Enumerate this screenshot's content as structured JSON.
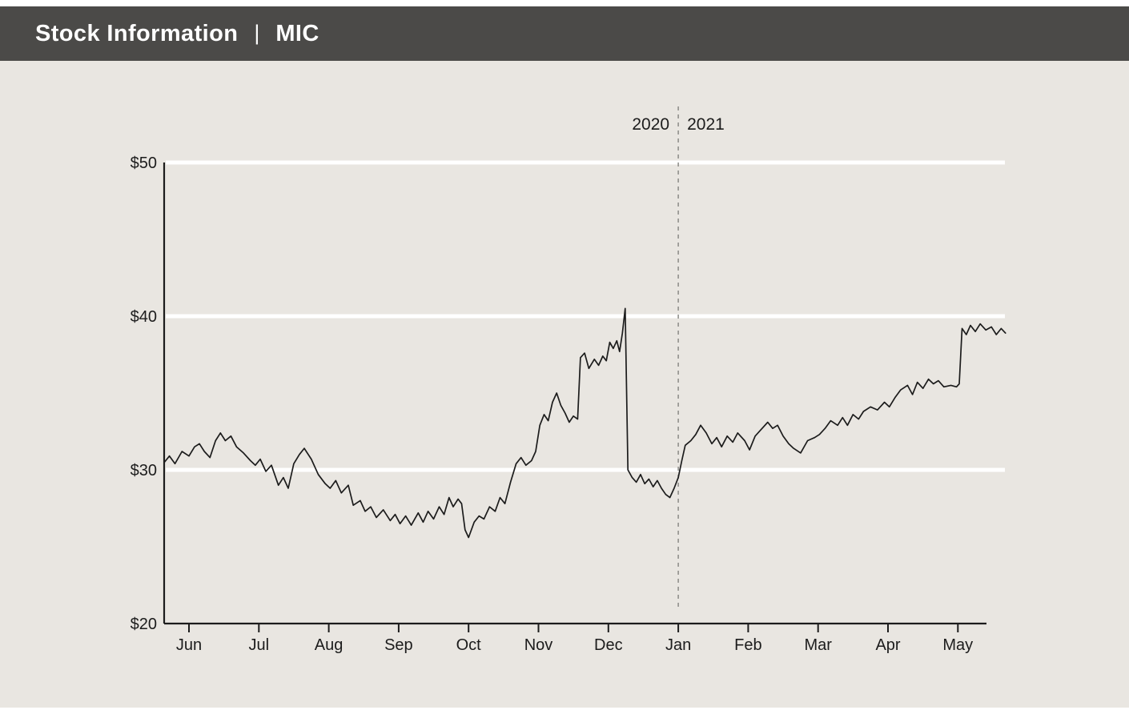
{
  "header": {
    "title": "Stock Information",
    "separator": "|",
    "ticker": "MIC"
  },
  "colors": {
    "header_bg": "#4b4a48",
    "header_text": "#ffffff",
    "chart_bg": "#e9e6e1",
    "line": "#1c1c1c",
    "axis": "#1c1c1c",
    "gridline": "#ffffff",
    "divider": "#8b8b86",
    "label_text": "#1c1c1c"
  },
  "chart_data": {
    "type": "line",
    "title": "Stock Information | MIC",
    "x_unit": "month index (0 = Jun 2020 tick, 11 = May 2021 tick, fractional = position within month)",
    "y_unit": "USD share price",
    "x_ticks": [
      "Jun",
      "Jul",
      "Aug",
      "Sep",
      "Oct",
      "Nov",
      "Dec",
      "Jan",
      "Feb",
      "Mar",
      "Apr",
      "May"
    ],
    "y_ticks": [
      {
        "value": 20,
        "label": "$20"
      },
      {
        "value": 30,
        "label": "$30"
      },
      {
        "value": 40,
        "label": "$40"
      },
      {
        "value": 50,
        "label": "$50"
      }
    ],
    "ylim": [
      20,
      50
    ],
    "gridline_values": [
      30,
      40,
      50
    ],
    "grid": "horizontal white lines at $30, $40, $50",
    "legend": "none",
    "year_divider": {
      "month_index": 7,
      "at_month": "Jan",
      "left_label": "2020",
      "right_label": "2021"
    },
    "series": [
      {
        "name": "MIC",
        "points": [
          [
            -0.35,
            30.5
          ],
          [
            -0.28,
            30.9
          ],
          [
            -0.2,
            30.4
          ],
          [
            -0.1,
            31.2
          ],
          [
            0,
            30.9
          ],
          [
            0.08,
            31.5
          ],
          [
            0.15,
            31.7
          ],
          [
            0.22,
            31.2
          ],
          [
            0.3,
            30.8
          ],
          [
            0.38,
            31.9
          ],
          [
            0.45,
            32.4
          ],
          [
            0.52,
            31.9
          ],
          [
            0.6,
            32.2
          ],
          [
            0.68,
            31.5
          ],
          [
            0.78,
            31.1
          ],
          [
            0.88,
            30.6
          ],
          [
            0.95,
            30.3
          ],
          [
            1.02,
            30.7
          ],
          [
            1.1,
            29.9
          ],
          [
            1.18,
            30.3
          ],
          [
            1.28,
            29.0
          ],
          [
            1.35,
            29.5
          ],
          [
            1.42,
            28.8
          ],
          [
            1.5,
            30.4
          ],
          [
            1.58,
            31.0
          ],
          [
            1.65,
            31.4
          ],
          [
            1.75,
            30.7
          ],
          [
            1.85,
            29.7
          ],
          [
            1.95,
            29.1
          ],
          [
            2.02,
            28.8
          ],
          [
            2.1,
            29.3
          ],
          [
            2.18,
            28.5
          ],
          [
            2.28,
            29.0
          ],
          [
            2.35,
            27.7
          ],
          [
            2.45,
            28.0
          ],
          [
            2.52,
            27.3
          ],
          [
            2.6,
            27.6
          ],
          [
            2.68,
            26.9
          ],
          [
            2.78,
            27.4
          ],
          [
            2.88,
            26.7
          ],
          [
            2.95,
            27.1
          ],
          [
            3.02,
            26.5
          ],
          [
            3.1,
            27.0
          ],
          [
            3.18,
            26.4
          ],
          [
            3.28,
            27.2
          ],
          [
            3.35,
            26.6
          ],
          [
            3.42,
            27.3
          ],
          [
            3.5,
            26.8
          ],
          [
            3.58,
            27.6
          ],
          [
            3.65,
            27.1
          ],
          [
            3.72,
            28.2
          ],
          [
            3.78,
            27.6
          ],
          [
            3.85,
            28.1
          ],
          [
            3.9,
            27.8
          ],
          [
            3.95,
            26.1
          ],
          [
            4.0,
            25.6
          ],
          [
            4.08,
            26.6
          ],
          [
            4.15,
            27.0
          ],
          [
            4.22,
            26.8
          ],
          [
            4.3,
            27.6
          ],
          [
            4.38,
            27.3
          ],
          [
            4.45,
            28.2
          ],
          [
            4.52,
            27.8
          ],
          [
            4.6,
            29.2
          ],
          [
            4.68,
            30.4
          ],
          [
            4.75,
            30.8
          ],
          [
            4.82,
            30.3
          ],
          [
            4.9,
            30.6
          ],
          [
            4.96,
            31.2
          ],
          [
            5.02,
            32.9
          ],
          [
            5.08,
            33.6
          ],
          [
            5.14,
            33.2
          ],
          [
            5.2,
            34.4
          ],
          [
            5.26,
            35.0
          ],
          [
            5.32,
            34.2
          ],
          [
            5.38,
            33.7
          ],
          [
            5.44,
            33.1
          ],
          [
            5.5,
            33.5
          ],
          [
            5.56,
            33.3
          ],
          [
            5.6,
            37.3
          ],
          [
            5.66,
            37.6
          ],
          [
            5.72,
            36.6
          ],
          [
            5.8,
            37.2
          ],
          [
            5.86,
            36.8
          ],
          [
            5.92,
            37.4
          ],
          [
            5.97,
            37.1
          ],
          [
            6.02,
            38.3
          ],
          [
            6.07,
            37.9
          ],
          [
            6.12,
            38.4
          ],
          [
            6.16,
            37.7
          ],
          [
            6.2,
            38.9
          ],
          [
            6.24,
            40.5
          ],
          [
            6.28,
            30.0
          ],
          [
            6.34,
            29.5
          ],
          [
            6.4,
            29.2
          ],
          [
            6.46,
            29.7
          ],
          [
            6.52,
            29.1
          ],
          [
            6.58,
            29.4
          ],
          [
            6.64,
            28.9
          ],
          [
            6.7,
            29.3
          ],
          [
            6.76,
            28.8
          ],
          [
            6.82,
            28.4
          ],
          [
            6.88,
            28.2
          ],
          [
            6.94,
            28.8
          ],
          [
            7.0,
            29.5
          ],
          [
            7.05,
            30.6
          ],
          [
            7.1,
            31.6
          ],
          [
            7.18,
            31.9
          ],
          [
            7.25,
            32.3
          ],
          [
            7.32,
            32.9
          ],
          [
            7.4,
            32.4
          ],
          [
            7.48,
            31.7
          ],
          [
            7.55,
            32.1
          ],
          [
            7.62,
            31.5
          ],
          [
            7.7,
            32.2
          ],
          [
            7.78,
            31.8
          ],
          [
            7.85,
            32.4
          ],
          [
            7.95,
            31.9
          ],
          [
            8.02,
            31.3
          ],
          [
            8.1,
            32.2
          ],
          [
            8.18,
            32.6
          ],
          [
            8.28,
            33.1
          ],
          [
            8.35,
            32.7
          ],
          [
            8.42,
            32.9
          ],
          [
            8.5,
            32.2
          ],
          [
            8.58,
            31.7
          ],
          [
            8.65,
            31.4
          ],
          [
            8.75,
            31.1
          ],
          [
            8.85,
            31.9
          ],
          [
            8.95,
            32.1
          ],
          [
            9.02,
            32.3
          ],
          [
            9.1,
            32.7
          ],
          [
            9.18,
            33.2
          ],
          [
            9.28,
            32.9
          ],
          [
            9.35,
            33.4
          ],
          [
            9.42,
            32.9
          ],
          [
            9.5,
            33.6
          ],
          [
            9.58,
            33.3
          ],
          [
            9.65,
            33.8
          ],
          [
            9.75,
            34.1
          ],
          [
            9.85,
            33.9
          ],
          [
            9.95,
            34.4
          ],
          [
            10.02,
            34.1
          ],
          [
            10.1,
            34.7
          ],
          [
            10.18,
            35.2
          ],
          [
            10.28,
            35.5
          ],
          [
            10.35,
            34.9
          ],
          [
            10.42,
            35.7
          ],
          [
            10.5,
            35.3
          ],
          [
            10.58,
            35.9
          ],
          [
            10.65,
            35.6
          ],
          [
            10.72,
            35.8
          ],
          [
            10.8,
            35.4
          ],
          [
            10.9,
            35.5
          ],
          [
            10.98,
            35.4
          ],
          [
            11.02,
            35.6
          ],
          [
            11.06,
            39.2
          ],
          [
            11.12,
            38.8
          ],
          [
            11.18,
            39.4
          ],
          [
            11.25,
            39.0
          ],
          [
            11.32,
            39.5
          ],
          [
            11.4,
            39.1
          ],
          [
            11.48,
            39.3
          ],
          [
            11.55,
            38.8
          ],
          [
            11.62,
            39.2
          ],
          [
            11.68,
            38.9
          ]
        ]
      }
    ]
  }
}
